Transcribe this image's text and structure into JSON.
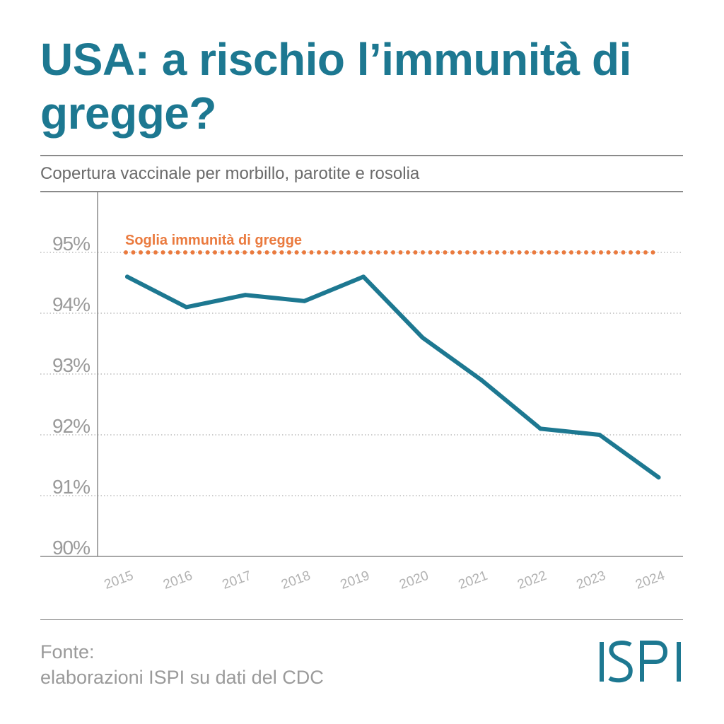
{
  "title": "USA: a rischio l’immunità di gregge?",
  "subtitle": "Copertura vaccinale per morbillo, parotite e rosolia",
  "source": {
    "label": "Fonte:",
    "text": "elaborazioni ISPI su dati del CDC"
  },
  "logo": {
    "text": "ISPI",
    "color": "#1d7891"
  },
  "colors": {
    "title": "#1d7891",
    "line": "#1d7891",
    "threshold": "#ea7a3e",
    "grid": "#9a9a9a"
  },
  "chart_data": {
    "type": "line",
    "title": "",
    "xlabel": "",
    "ylabel": "",
    "categories": [
      "2015",
      "2016",
      "2017",
      "2018",
      "2019",
      "2020",
      "2021",
      "2022",
      "2023",
      "2024"
    ],
    "series": [
      {
        "values": [
          94.6,
          94.1,
          94.3,
          94.2,
          94.6,
          93.6,
          92.9,
          92.1,
          92.0,
          91.3
        ]
      }
    ],
    "threshold": {
      "label": "Soglia immunità di gregge",
      "value": 95
    },
    "ylim": [
      90,
      96
    ],
    "yticks": [
      90,
      91,
      92,
      93,
      94,
      95
    ],
    "ytick_labels": [
      "90%",
      "91%",
      "92%",
      "93%",
      "94%",
      "95%"
    ],
    "grid": true,
    "legend": "none"
  }
}
